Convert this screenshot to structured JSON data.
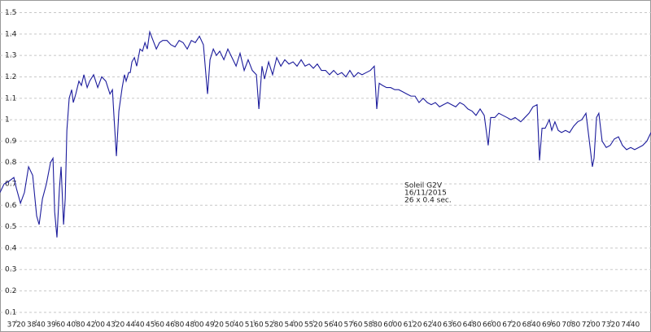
{
  "chart_data": {
    "type": "line",
    "x": [
      3621,
      3646,
      3671,
      3705,
      3720,
      3745,
      3769,
      3794,
      3819,
      3843,
      3858,
      3878,
      3902,
      3927,
      3942,
      3952,
      3966,
      3981,
      3991,
      4006,
      4016,
      4026,
      4040,
      4055,
      4065,
      4080,
      4099,
      4114,
      4129,
      4149,
      4164,
      4188,
      4213,
      4237,
      4262,
      4287,
      4302,
      4311,
      4326,
      4341,
      4361,
      4375,
      4385,
      4400,
      4410,
      4420,
      4435,
      4449,
      4469,
      4484,
      4499,
      4513,
      4528,
      4548,
      4568,
      4587,
      4607,
      4632,
      4656,
      4681,
      4706,
      4730,
      4755,
      4780,
      4804,
      4829,
      4853,
      4878,
      4893,
      4913,
      4932,
      4952,
      4977,
      5001,
      5026,
      5051,
      5075,
      5100,
      5124,
      5149,
      5174,
      5189,
      5208,
      5223,
      5248,
      5272,
      5297,
      5322,
      5346,
      5371,
      5396,
      5420,
      5445,
      5469,
      5494,
      5519,
      5543,
      5568,
      5593,
      5617,
      5642,
      5666,
      5691,
      5716,
      5740,
      5765,
      5790,
      5814,
      5839,
      5864,
      5888,
      5903,
      5918,
      5938,
      5962,
      5987,
      6012,
      6036,
      6061,
      6085,
      6110,
      6135,
      6159,
      6184,
      6209,
      6233,
      6258,
      6283,
      6307,
      6332,
      6356,
      6381,
      6406,
      6430,
      6455,
      6480,
      6504,
      6529,
      6554,
      6578,
      6593,
      6618,
      6642,
      6667,
      6692,
      6716,
      6741,
      6775,
      6800,
      6825,
      6849,
      6874,
      6889,
      6904,
      6923,
      6948,
      6963,
      6982,
      7002,
      7022,
      7046,
      7071,
      7096,
      7120,
      7145,
      7170,
      7189,
      7209,
      7219,
      7234,
      7248,
      7268,
      7293,
      7317,
      7342,
      7367,
      7391,
      7416,
      7441,
      7465,
      7490,
      7514,
      7539,
      7564
    ],
    "series": [
      {
        "color": "#1c1c9c",
        "values": [
          0.66,
          0.7,
          0.71,
          0.73,
          0.68,
          0.61,
          0.66,
          0.78,
          0.74,
          0.55,
          0.51,
          0.63,
          0.7,
          0.8,
          0.82,
          0.57,
          0.45,
          0.68,
          0.78,
          0.51,
          0.63,
          0.95,
          1.1,
          1.14,
          1.08,
          1.12,
          1.18,
          1.16,
          1.21,
          1.15,
          1.18,
          1.21,
          1.15,
          1.2,
          1.18,
          1.12,
          1.14,
          1.02,
          0.83,
          1.04,
          1.15,
          1.21,
          1.18,
          1.22,
          1.22,
          1.27,
          1.29,
          1.25,
          1.33,
          1.32,
          1.36,
          1.33,
          1.41,
          1.37,
          1.33,
          1.36,
          1.37,
          1.37,
          1.35,
          1.34,
          1.37,
          1.36,
          1.33,
          1.37,
          1.36,
          1.39,
          1.35,
          1.12,
          1.28,
          1.33,
          1.3,
          1.32,
          1.28,
          1.33,
          1.29,
          1.25,
          1.31,
          1.23,
          1.28,
          1.23,
          1.21,
          1.05,
          1.25,
          1.19,
          1.27,
          1.21,
          1.29,
          1.25,
          1.28,
          1.26,
          1.27,
          1.25,
          1.28,
          1.25,
          1.26,
          1.24,
          1.26,
          1.23,
          1.23,
          1.21,
          1.23,
          1.21,
          1.22,
          1.2,
          1.23,
          1.2,
          1.22,
          1.21,
          1.22,
          1.23,
          1.25,
          1.05,
          1.17,
          1.16,
          1.15,
          1.15,
          1.14,
          1.14,
          1.13,
          1.12,
          1.11,
          1.11,
          1.08,
          1.1,
          1.08,
          1.07,
          1.08,
          1.06,
          1.07,
          1.08,
          1.07,
          1.06,
          1.08,
          1.07,
          1.05,
          1.04,
          1.02,
          1.05,
          1.02,
          0.88,
          1.01,
          1.01,
          1.03,
          1.02,
          1.01,
          1.0,
          1.01,
          0.99,
          1.01,
          1.03,
          1.06,
          1.07,
          0.81,
          0.96,
          0.96,
          1.0,
          0.95,
          0.99,
          0.95,
          0.94,
          0.95,
          0.94,
          0.97,
          0.99,
          1.0,
          1.03,
          0.91,
          0.78,
          0.82,
          1.01,
          1.03,
          0.9,
          0.87,
          0.88,
          0.91,
          0.92,
          0.88,
          0.86,
          0.87,
          0.86,
          0.87,
          0.88,
          0.9,
          0.94
        ]
      }
    ],
    "xlim": [
      3621,
      7564
    ],
    "ylim": [
      0.05,
      1.54
    ],
    "xticks": [
      3720,
      3840,
      3960,
      4080,
      4200,
      4320,
      4440,
      4560,
      4680,
      4800,
      4920,
      5040,
      5160,
      5280,
      5400,
      5520,
      5640,
      5760,
      5880,
      6000,
      6120,
      6240,
      6360,
      6480,
      6600,
      6720,
      6840,
      6960,
      7080,
      7200,
      7320,
      7440
    ],
    "yticks": [
      0.1,
      0.2,
      0.3,
      0.4,
      0.5,
      0.6,
      0.7,
      0.8,
      0.9,
      1,
      1.1,
      1.2,
      1.3,
      1.4,
      1.5
    ],
    "grid": true,
    "annotation": [
      "Soleil G2V",
      "16/11/2015",
      "26 x 0.4 sec."
    ]
  }
}
